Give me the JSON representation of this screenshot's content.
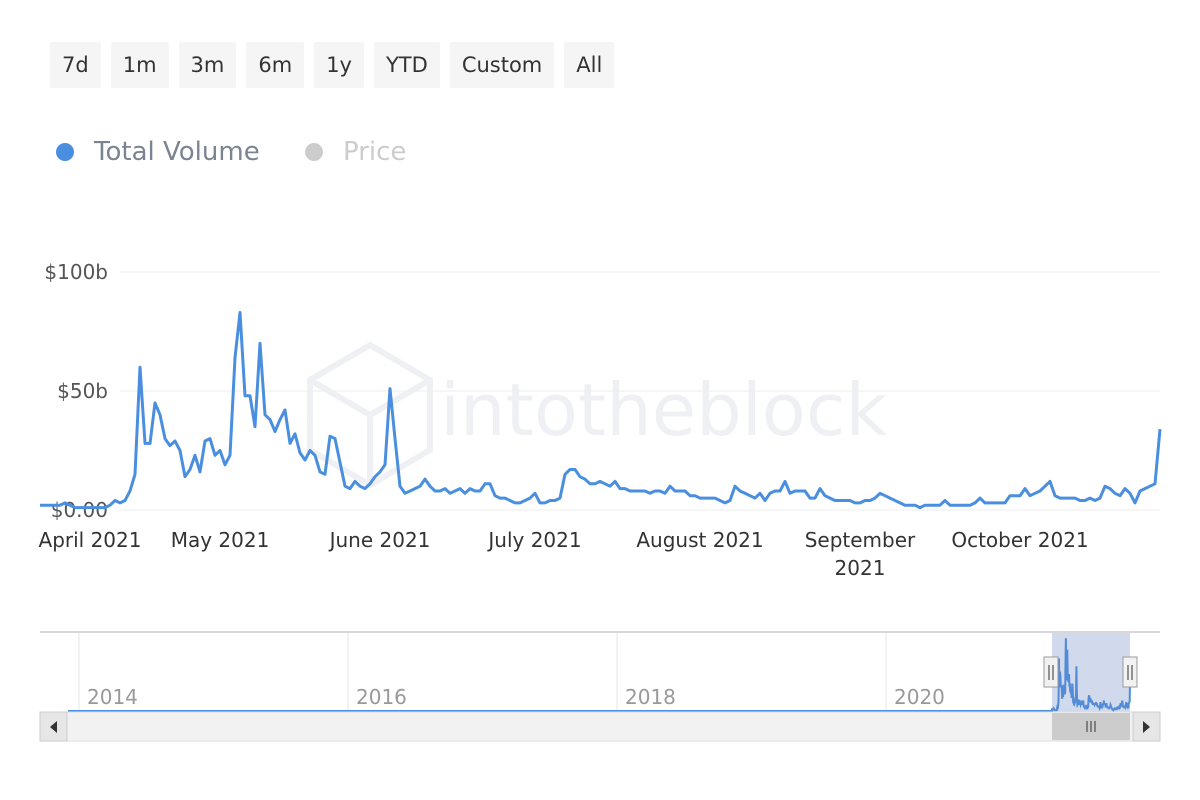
{
  "range_buttons": [
    "7d",
    "1m",
    "3m",
    "6m",
    "1y",
    "YTD",
    "Custom",
    "All"
  ],
  "watermark": "intotheblock",
  "chart_data": {
    "type": "line",
    "series": [
      {
        "name": "Total Volume",
        "color": "#4a8fdf",
        "values": [
          2,
          2,
          2,
          2,
          2,
          3,
          2,
          1,
          1,
          1,
          1,
          1,
          1,
          1,
          2,
          4,
          3,
          4,
          8,
          15,
          60,
          28,
          28,
          45,
          40,
          30,
          27,
          29,
          25,
          14,
          17,
          23,
          16,
          29,
          30,
          23,
          25,
          19,
          23,
          64,
          83,
          48,
          48,
          35,
          70,
          40,
          38,
          33,
          38,
          42,
          28,
          32,
          24,
          21,
          25,
          23,
          16,
          15,
          31,
          30,
          20,
          10,
          9,
          12,
          10,
          9,
          11,
          14,
          16,
          19,
          51,
          30,
          10,
          7,
          8,
          9,
          10,
          13,
          10,
          8,
          8,
          9,
          7,
          8,
          9,
          7,
          9,
          8,
          8,
          11,
          11,
          6,
          5,
          5,
          4,
          3,
          3,
          4,
          5,
          7,
          3,
          3,
          4,
          4,
          5,
          15,
          17,
          17,
          14,
          13,
          11,
          11,
          12,
          11,
          10,
          12,
          9,
          9,
          8,
          8,
          8,
          8,
          7,
          8,
          8,
          7,
          10,
          8,
          8,
          8,
          6,
          6,
          5,
          5,
          5,
          5,
          4,
          3,
          4,
          10,
          8,
          7,
          6,
          5,
          7,
          4,
          7,
          8,
          8,
          12,
          7,
          8,
          8,
          8,
          5,
          5,
          9,
          6,
          5,
          4,
          4,
          4,
          4,
          3,
          3,
          4,
          4,
          5,
          7,
          6,
          5,
          4,
          3,
          2,
          2,
          2,
          1,
          2,
          2,
          2,
          2,
          4,
          2,
          2,
          2,
          2,
          2,
          3,
          5,
          3,
          3,
          3,
          3,
          3,
          6,
          6,
          6,
          9,
          6,
          7,
          8,
          10,
          12,
          6,
          5,
          5,
          5,
          5,
          4,
          4,
          5,
          4,
          5,
          10,
          9,
          7,
          6,
          9,
          7,
          3,
          8,
          9,
          10,
          11,
          34
        ]
      },
      {
        "name": "Price",
        "color": "#cccccc",
        "visible": false
      }
    ],
    "categories": [
      null,
      null,
      null,
      null,
      null,
      null,
      null,
      null,
      null,
      null,
      "April 2021",
      null,
      null,
      null,
      null,
      null,
      null,
      null,
      null,
      null,
      null,
      null,
      null,
      null,
      null,
      null,
      null,
      null,
      null,
      null,
      null,
      null,
      null,
      null,
      null,
      null,
      "May 2021",
      null,
      null,
      null,
      null,
      null,
      null,
      null,
      null,
      null,
      null,
      null,
      null,
      null,
      null,
      null,
      null,
      null,
      null,
      null,
      null,
      null,
      null,
      null,
      null,
      null,
      null,
      null,
      null,
      null,
      null,
      null,
      "June 2021",
      null,
      null,
      null,
      null,
      null,
      null,
      null,
      null,
      null,
      null,
      null,
      null,
      null,
      null,
      null,
      null,
      null,
      null,
      null,
      null,
      null,
      null,
      null,
      null,
      null,
      null,
      null,
      null,
      null,
      null,
      "July 2021",
      null,
      null,
      null,
      null,
      null,
      null,
      null,
      null,
      null,
      null,
      null,
      null,
      null,
      null,
      null,
      null,
      null,
      null,
      null,
      null,
      null,
      null,
      null,
      null,
      null,
      null,
      null,
      null,
      null,
      null,
      null,
      null,
      "August 2021",
      null,
      null,
      null,
      null,
      null,
      null,
      null,
      null,
      null,
      null,
      null,
      null,
      null,
      null,
      null,
      null,
      null,
      null,
      null,
      null,
      null,
      null,
      null,
      null,
      null,
      null,
      null,
      null,
      null,
      null,
      null,
      "September 2021",
      null,
      null,
      null,
      null,
      null,
      null,
      null,
      null,
      null,
      null,
      null,
      null,
      null,
      null,
      null,
      null,
      null,
      null,
      null,
      null,
      null,
      null,
      null,
      null,
      null,
      null,
      null,
      null,
      null,
      null,
      null,
      "October 2021",
      null,
      null,
      null,
      null,
      null,
      null,
      null,
      null,
      null,
      null,
      null,
      null,
      null,
      null,
      null,
      null,
      null,
      null,
      null,
      null,
      null,
      null,
      null,
      null,
      null,
      null,
      null,
      null
    ],
    "ylim": [
      0,
      100
    ],
    "yticks": [
      {
        "value": 0,
        "label": "$0.00"
      },
      {
        "value": 50,
        "label": "$50b"
      },
      {
        "value": 100,
        "label": "$100b"
      }
    ],
    "grid": true,
    "navigator": {
      "xticks": [
        "2014",
        "2016",
        "2018",
        "2020"
      ]
    }
  }
}
